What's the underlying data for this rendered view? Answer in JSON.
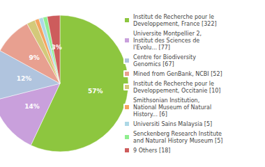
{
  "chart_data": {
    "type": "pie",
    "categories": [
      "Institut de Recherche pour le\nDeveloppement, France [322]",
      "Universite Montpellier 2,\nInstitut des Sciences de\nl'Evolu... [77]",
      "Centre for Biodiversity\nGenomics [67]",
      "Mined from GenBank, NCBI [52]",
      "Institut de Recherche pour le\nDeveloppement, Occitanie [10]",
      "Smithsonian Institution,\nNational Museum of Natural\nHistory... [6]",
      "Universiti Sains Malaysia [5]",
      "Senckenberg Research Institute\nand Natural History Museum [5]",
      "9 Others [18]"
    ],
    "values": [
      57,
      14,
      12,
      9,
      2,
      1,
      1,
      1,
      3
    ],
    "value_labels": [
      "57%",
      "14%",
      "12%",
      "9%",
      null,
      null,
      null,
      null,
      "3%"
    ],
    "data_labels": true,
    "colors": [
      "#8DC63F",
      "#C9A0DC",
      "#B0C4DE",
      "#E8A090",
      "#D4C97A",
      "#F4A460",
      "#ADD8E6",
      "#90EE90",
      "#CD5C5C"
    ],
    "legend": "right"
  }
}
